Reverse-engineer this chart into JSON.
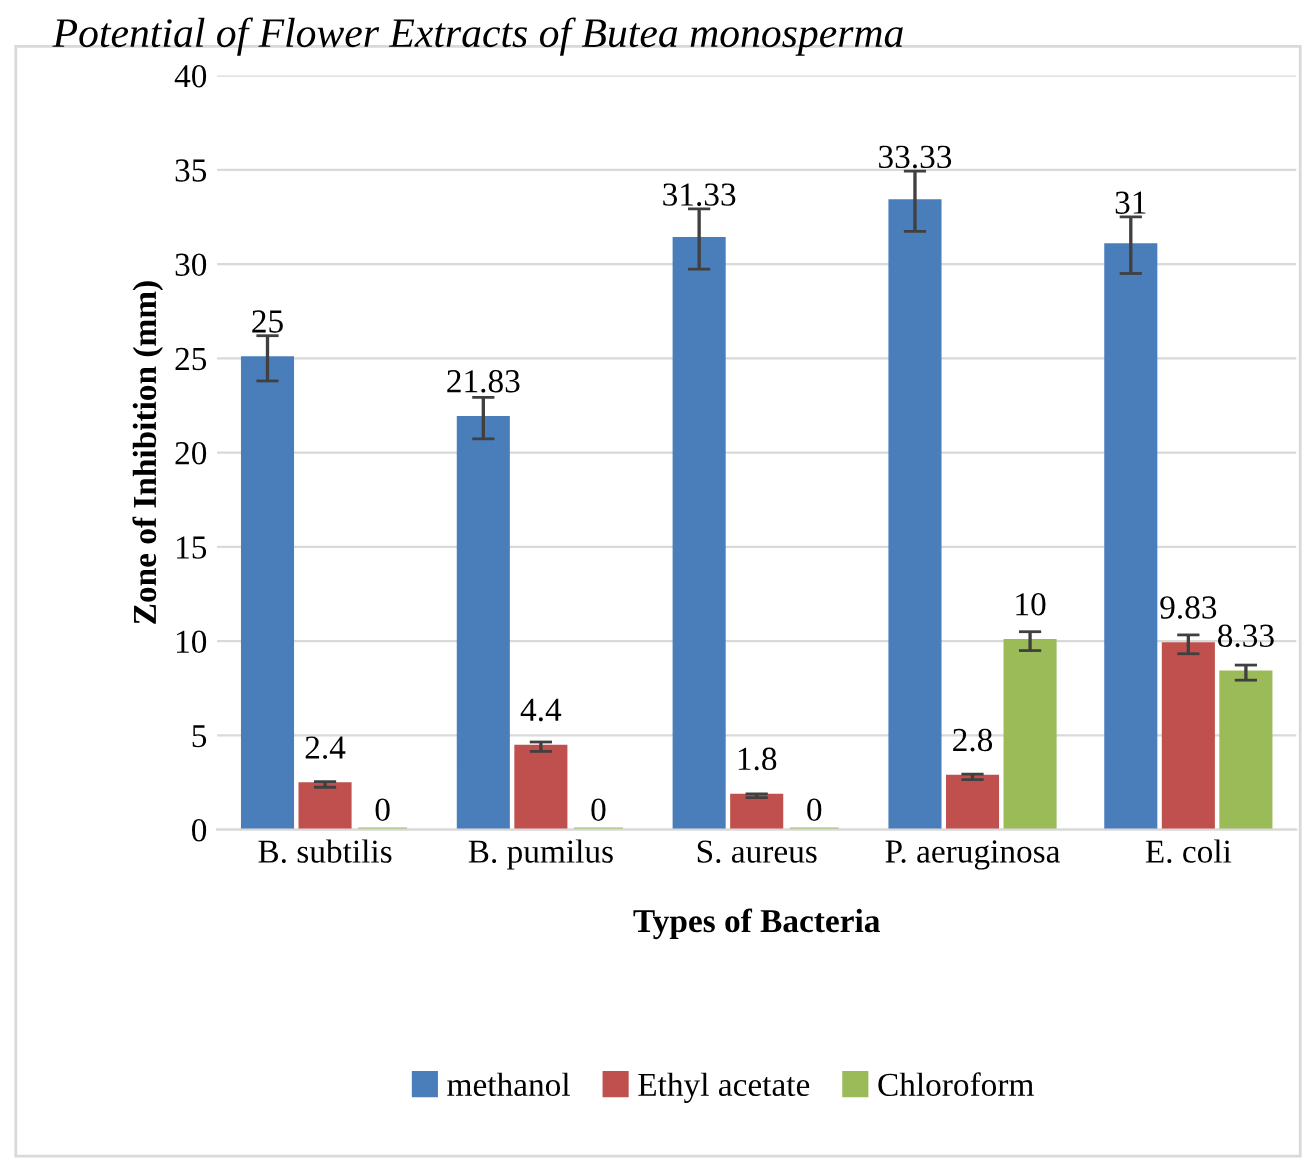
{
  "chart_data": {
    "type": "bar",
    "title": "Potential of Flower Extracts of Butea monosperma",
    "xlabel": "Types of Bacteria",
    "ylabel": "Zone of Inhibition (mm)",
    "categories": [
      "B. subtilis",
      "B. pumilus",
      "S. aureus",
      "P. aeruginosa",
      "E. coli"
    ],
    "series": [
      {
        "name": "methanol",
        "color": "#4a7ebb",
        "values": [
          25,
          21.83,
          31.33,
          33.33,
          31
        ],
        "errors": [
          1.2,
          1.1,
          1.6,
          1.6,
          1.5
        ]
      },
      {
        "name": "Ethyl acetate",
        "color": "#c0504d",
        "values": [
          2.4,
          4.4,
          1.8,
          2.8,
          9.83
        ],
        "errors": [
          0.15,
          0.25,
          0.1,
          0.15,
          0.5
        ]
      },
      {
        "name": "Chloroform",
        "color": "#9bbb59",
        "values": [
          0,
          0,
          0,
          10,
          8.33
        ],
        "errors": [
          null,
          null,
          null,
          0.5,
          0.4
        ]
      }
    ],
    "ylim": [
      0,
      40
    ],
    "yticks": [
      0,
      5,
      10,
      15,
      20,
      25,
      30,
      35,
      40
    ],
    "grid": "y",
    "legend": "bottom",
    "data_labels": true
  }
}
